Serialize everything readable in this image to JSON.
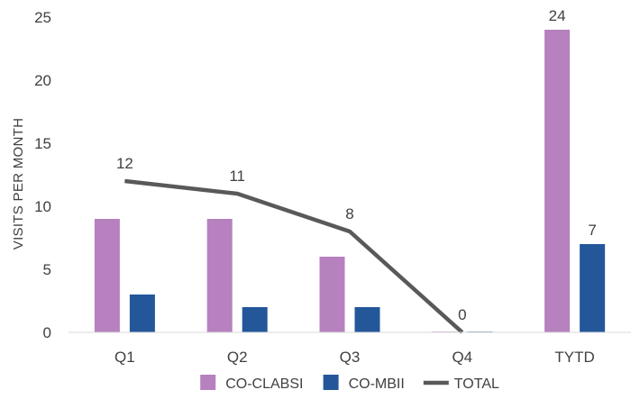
{
  "chart_data": {
    "type": "bar",
    "categories": [
      "Q1",
      "Q2",
      "Q3",
      "Q4",
      "TYTD"
    ],
    "series": [
      {
        "name": "CO-CLABSI",
        "kind": "bar",
        "color": "#b681be",
        "values": [
          9,
          9,
          6,
          0,
          24
        ]
      },
      {
        "name": "CO-MBII",
        "kind": "bar",
        "color": "#24579a",
        "values": [
          3,
          2,
          2,
          0,
          7
        ]
      },
      {
        "name": "TOTAL",
        "kind": "line",
        "color": "#595959",
        "values": [
          12,
          11,
          8,
          0,
          null
        ]
      }
    ],
    "data_labels": [
      {
        "category": "Q1",
        "series": "TOTAL",
        "text": "12"
      },
      {
        "category": "Q2",
        "series": "TOTAL",
        "text": "11"
      },
      {
        "category": "Q3",
        "series": "TOTAL",
        "text": "8"
      },
      {
        "category": "Q4",
        "series": "TOTAL",
        "text": "0"
      },
      {
        "category": "TYTD",
        "series": "CO-CLABSI",
        "text": "24"
      },
      {
        "category": "TYTD",
        "series": "CO-MBII",
        "text": "7"
      }
    ],
    "ylabel": "VISITS PER MONTH",
    "xlabel": "",
    "ylim": [
      0,
      25
    ],
    "yticks": [
      0,
      5,
      10,
      15,
      20,
      25
    ],
    "grid": false,
    "legend": "bottom-center"
  }
}
